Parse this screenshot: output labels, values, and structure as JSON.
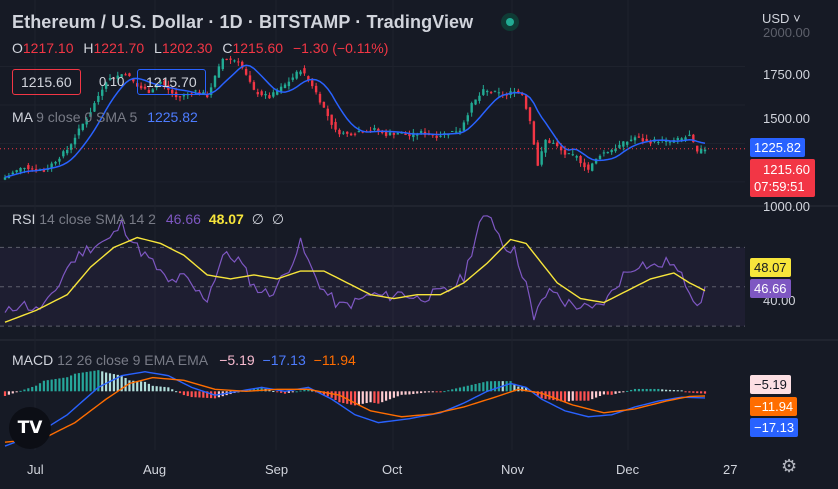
{
  "header": {
    "title": "Ethereum / U.S. Dollar · 1D · BITSTAMP · TradingView",
    "currency": "USD",
    "ohlc": [
      {
        "key": "O",
        "value": "1217.10"
      },
      {
        "key": "H",
        "value": "1221.70"
      },
      {
        "key": "L",
        "value": "1202.30"
      },
      {
        "key": "C",
        "value": "1215.60"
      }
    ],
    "change": "−1.30 (−0.11%)",
    "sell_price": "1215.60",
    "spread": "0.10",
    "buy_price": "1215.70"
  },
  "indicators": {
    "ma": {
      "name": "MA",
      "params": "9 close 0 SMA 5",
      "value": "1225.82"
    },
    "rsi": {
      "name": "RSI",
      "params": "14 close SMA 14 2",
      "rsi_value": "46.66",
      "ma_value": "48.07",
      "extra1": "∅",
      "extra2": "∅"
    },
    "macd": {
      "name": "MACD",
      "params": "12 26 close 9 EMA EMA",
      "hist": "−5.19",
      "macd": "−17.13",
      "signal": "−11.94"
    }
  },
  "badges": {
    "ma": "1225.82",
    "price": "1215.60",
    "countdown": "07:59:51",
    "rsi_ma": "48.07",
    "rsi": "46.66",
    "macd_hist": "−5.19",
    "macd_signal": "−11.94",
    "macd_line": "−17.13"
  },
  "colors": {
    "background": "#161a25",
    "up": "#22ab94",
    "down": "#f23645",
    "ma": "#2962ff",
    "rsi": "#7e57c2",
    "rsi_ma": "#f7e53b",
    "macd": "#2962ff",
    "signal": "#ff6d00"
  },
  "chart_data": [
    {
      "type": "candlestick",
      "title": "Ethereum / U.S. Dollar · 1D · BITSTAMP",
      "ylim": [
        850,
        2020
      ],
      "yticks": [
        "2000.00",
        "1750.00",
        "1500.00",
        "1000.00"
      ],
      "xticks": [
        "Jul",
        "Aug",
        "Sep",
        "Oct",
        "Nov",
        "Dec",
        "27"
      ],
      "close_anchors": [
        [
          0,
          1030
        ],
        [
          5,
          1100
        ],
        [
          10,
          1070
        ],
        [
          16,
          1210
        ],
        [
          22,
          1460
        ],
        [
          26,
          1660
        ],
        [
          31,
          1710
        ],
        [
          34,
          1620
        ],
        [
          37,
          1590
        ],
        [
          40,
          1650
        ],
        [
          44,
          1550
        ],
        [
          46,
          1560
        ],
        [
          49,
          1590
        ],
        [
          52,
          1560
        ],
        [
          56,
          1800
        ],
        [
          60,
          1790
        ],
        [
          64,
          1590
        ],
        [
          68,
          1550
        ],
        [
          72,
          1630
        ],
        [
          76,
          1730
        ],
        [
          79,
          1630
        ],
        [
          82,
          1480
        ],
        [
          85,
          1330
        ],
        [
          88,
          1310
        ],
        [
          91,
          1330
        ],
        [
          95,
          1340
        ],
        [
          98,
          1310
        ],
        [
          101,
          1320
        ],
        [
          104,
          1300
        ],
        [
          107,
          1320
        ],
        [
          111,
          1300
        ],
        [
          114,
          1320
        ],
        [
          117,
          1340
        ],
        [
          120,
          1500
        ],
        [
          123,
          1590
        ],
        [
          126,
          1580
        ],
        [
          129,
          1560
        ],
        [
          131,
          1600
        ],
        [
          133,
          1570
        ],
        [
          135,
          1400
        ],
        [
          137,
          1110
        ],
        [
          139,
          1270
        ],
        [
          141,
          1250
        ],
        [
          144,
          1180
        ],
        [
          147,
          1160
        ],
        [
          150,
          1080
        ],
        [
          153,
          1180
        ],
        [
          156,
          1210
        ],
        [
          159,
          1250
        ],
        [
          162,
          1290
        ],
        [
          165,
          1260
        ],
        [
          168,
          1270
        ],
        [
          171,
          1260
        ],
        [
          174,
          1280
        ],
        [
          176,
          1300
        ],
        [
          178,
          1190
        ],
        [
          180,
          1216
        ]
      ]
    },
    {
      "type": "line",
      "title": "RSI 14 close SMA 14",
      "ylim": [
        25,
        90
      ],
      "yticks": [
        "40.00"
      ],
      "series": [
        {
          "name": "RSI",
          "anchors": [
            [
              0,
              36
            ],
            [
              4,
              42
            ],
            [
              8,
              38
            ],
            [
              12,
              44
            ],
            [
              16,
              60
            ],
            [
              20,
              68
            ],
            [
              24,
              72
            ],
            [
              27,
              74
            ],
            [
              30,
              82
            ],
            [
              34,
              70
            ],
            [
              38,
              62
            ],
            [
              42,
              52
            ],
            [
              46,
              55
            ],
            [
              49,
              48
            ],
            [
              52,
              44
            ],
            [
              56,
              66
            ],
            [
              60,
              64
            ],
            [
              64,
              50
            ],
            [
              68,
              46
            ],
            [
              72,
              56
            ],
            [
              76,
              72
            ],
            [
              79,
              58
            ],
            [
              82,
              48
            ],
            [
              86,
              40
            ],
            [
              90,
              42
            ],
            [
              94,
              46
            ],
            [
              98,
              45
            ],
            [
              102,
              47
            ],
            [
              106,
              44
            ],
            [
              110,
              46
            ],
            [
              114,
              48
            ],
            [
              118,
              55
            ],
            [
              122,
              82
            ],
            [
              125,
              86
            ],
            [
              128,
              72
            ],
            [
              131,
              68
            ],
            [
              134,
              52
            ],
            [
              136,
              32
            ],
            [
              138,
              44
            ],
            [
              141,
              48
            ],
            [
              144,
              42
            ],
            [
              148,
              40
            ],
            [
              151,
              38
            ],
            [
              155,
              44
            ],
            [
              159,
              56
            ],
            [
              163,
              62
            ],
            [
              167,
              60
            ],
            [
              171,
              63
            ],
            [
              175,
              52
            ],
            [
              178,
              42
            ],
            [
              180,
              47
            ]
          ]
        },
        {
          "name": "SMA",
          "anchors": [
            [
              0,
              32
            ],
            [
              8,
              38
            ],
            [
              16,
              46
            ],
            [
              22,
              60
            ],
            [
              28,
              70
            ],
            [
              34,
              75
            ],
            [
              40,
              72
            ],
            [
              46,
              66
            ],
            [
              52,
              56
            ],
            [
              58,
              54
            ],
            [
              64,
              56
            ],
            [
              70,
              54
            ],
            [
              76,
              58
            ],
            [
              82,
              58
            ],
            [
              88,
              52
            ],
            [
              94,
              46
            ],
            [
              100,
              44
            ],
            [
              106,
              46
            ],
            [
              112,
              46
            ],
            [
              118,
              52
            ],
            [
              124,
              62
            ],
            [
              130,
              74
            ],
            [
              134,
              72
            ],
            [
              138,
              62
            ],
            [
              142,
              52
            ],
            [
              148,
              44
            ],
            [
              154,
              42
            ],
            [
              160,
              48
            ],
            [
              166,
              54
            ],
            [
              172,
              57
            ],
            [
              176,
              52
            ],
            [
              180,
              48
            ]
          ]
        }
      ]
    },
    {
      "type": "line",
      "title": "MACD 12 26 close 9 EMA EMA",
      "ylim": [
        -150,
        80
      ],
      "series": [
        {
          "name": "MACD",
          "anchors": [
            [
              0,
              -140
            ],
            [
              8,
              -110
            ],
            [
              16,
              -60
            ],
            [
              24,
              10
            ],
            [
              30,
              40
            ],
            [
              36,
              50
            ],
            [
              42,
              40
            ],
            [
              48,
              10
            ],
            [
              54,
              -10
            ],
            [
              60,
              0
            ],
            [
              66,
              10
            ],
            [
              72,
              0
            ],
            [
              78,
              10
            ],
            [
              84,
              -20
            ],
            [
              90,
              -60
            ],
            [
              96,
              -80
            ],
            [
              104,
              -70
            ],
            [
              112,
              -55
            ],
            [
              118,
              -30
            ],
            [
              124,
              0
            ],
            [
              130,
              20
            ],
            [
              134,
              10
            ],
            [
              138,
              -20
            ],
            [
              144,
              -50
            ],
            [
              150,
              -65
            ],
            [
              156,
              -60
            ],
            [
              162,
              -40
            ],
            [
              168,
              -25
            ],
            [
              174,
              -15
            ],
            [
              180,
              -17
            ]
          ]
        },
        {
          "name": "Signal",
          "anchors": [
            [
              0,
              -130
            ],
            [
              10,
              -120
            ],
            [
              18,
              -80
            ],
            [
              26,
              -20
            ],
            [
              32,
              20
            ],
            [
              38,
              35
            ],
            [
              46,
              28
            ],
            [
              54,
              5
            ],
            [
              62,
              0
            ],
            [
              70,
              5
            ],
            [
              78,
              5
            ],
            [
              86,
              -10
            ],
            [
              94,
              -50
            ],
            [
              102,
              -65
            ],
            [
              110,
              -58
            ],
            [
              118,
              -40
            ],
            [
              126,
              -15
            ],
            [
              132,
              5
            ],
            [
              138,
              -5
            ],
            [
              146,
              -35
            ],
            [
              154,
              -55
            ],
            [
              162,
              -45
            ],
            [
              170,
              -25
            ],
            [
              176,
              -13
            ],
            [
              180,
              -12
            ]
          ]
        }
      ]
    }
  ]
}
